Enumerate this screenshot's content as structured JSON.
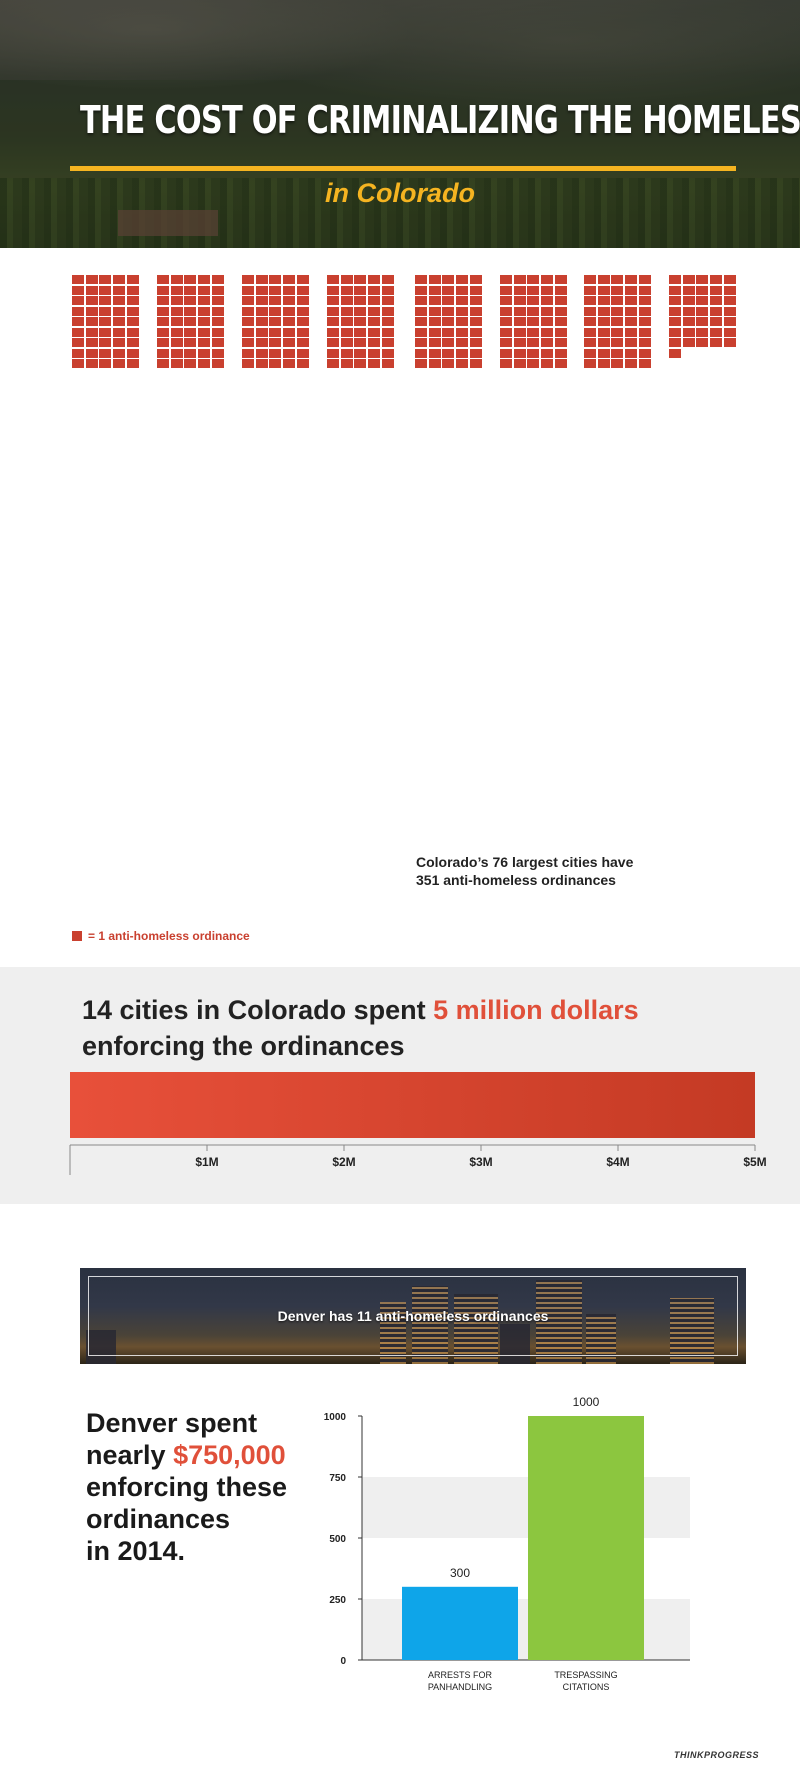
{
  "header": {
    "title": "THE COST OF CRIMINALIZING THE HOMELESS",
    "subtitle": "in Colorado"
  },
  "waffle": {
    "total_ordinances": 351,
    "note_line1": "Colorado’s 76 largest cities have",
    "note_line2": "351 anti-homeless ordinances",
    "legend": "= 1 anti-homeless ordinance",
    "color": "#c9402f"
  },
  "spending": {
    "title_before": "14 cities in Colorado spent ",
    "title_highlight": "5 million dollars",
    "title_after": "enforcing the ordinances",
    "highlight_color": "#e0503a"
  },
  "banner": {
    "text": "Denver has 11 anti-homeless ordinances"
  },
  "denver": {
    "line1": "Denver spent",
    "line2_before": "nearly ",
    "line2_highlight": "$750,000",
    "line3": "enforcing these",
    "line4": "ordinances",
    "line5": "in 2014."
  },
  "brand": "THINKPROGRESS",
  "chart_data": [
    {
      "type": "bar",
      "orientation": "horizontal",
      "values": [
        5000000
      ],
      "xlim": [
        0,
        5000000
      ],
      "tick_labels": [
        "$1M",
        "$2M",
        "$3M",
        "$4M",
        "$5M"
      ],
      "tick_values": [
        1000000,
        2000000,
        3000000,
        4000000,
        5000000
      ],
      "color": "#d9432f"
    },
    {
      "type": "bar",
      "categories": [
        "ARRESTS FOR PANHANDLING",
        "TRESPASSING CITATIONS"
      ],
      "category_lines": [
        [
          "ARRESTS FOR",
          "PANHANDLING"
        ],
        [
          "TRESPASSING",
          "CITATIONS"
        ]
      ],
      "values": [
        300,
        1000
      ],
      "data_labels": [
        "300",
        "1000"
      ],
      "colors": [
        "#0ea5e9",
        "#8cc63f"
      ],
      "ylim": [
        0,
        1000
      ],
      "yticks": [
        0,
        250,
        500,
        750,
        1000
      ],
      "banded_grid": true
    }
  ]
}
